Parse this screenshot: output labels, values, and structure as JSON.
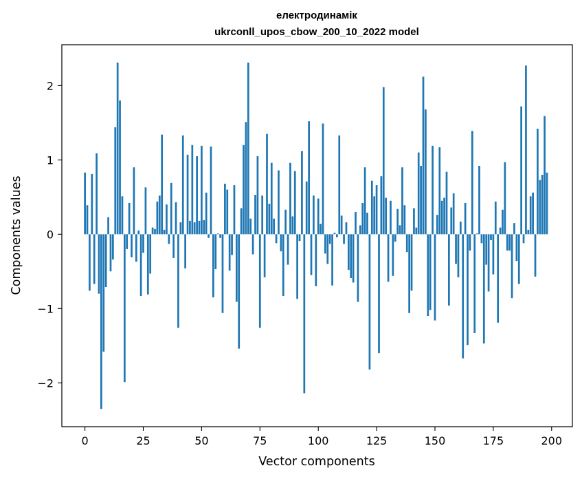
{
  "chart_data": {
    "type": "bar",
    "title": "електродинамік",
    "subtitle": "ukrconll_upos_cbow_200_10_2022 model",
    "xlabel": "Vector components",
    "ylabel": "Components values",
    "xlim": [
      -9.9,
      208.9
    ],
    "ylim": [
      -2.59,
      2.55
    ],
    "xticks": [
      0,
      25,
      50,
      75,
      100,
      125,
      150,
      175,
      200
    ],
    "yticks": [
      -2,
      -1,
      0,
      1,
      2
    ],
    "ytick_labels": [
      "−2",
      "−1",
      "0",
      "1",
      "2"
    ],
    "grid": false,
    "bar_color": "#1f77b4",
    "values": [
      0.83,
      0.39,
      -0.76,
      0.81,
      -0.67,
      1.09,
      -0.8,
      -2.35,
      -1.58,
      -0.71,
      0.23,
      -0.5,
      -0.34,
      1.44,
      2.31,
      1.8,
      0.51,
      -1.99,
      -0.2,
      0.42,
      -0.31,
      0.9,
      -0.37,
      0.05,
      -0.83,
      -0.25,
      0.63,
      -0.81,
      -0.53,
      0.09,
      0.07,
      0.44,
      0.52,
      1.34,
      0.06,
      0.4,
      -0.13,
      0.69,
      -0.32,
      0.43,
      -1.26,
      0.16,
      1.33,
      -0.46,
      1.07,
      0.18,
      1.2,
      0.16,
      1.05,
      0.18,
      1.19,
      0.19,
      0.56,
      -0.05,
      1.18,
      -0.85,
      -0.47,
      0.01,
      -0.05,
      -1.06,
      0.68,
      0.6,
      -0.49,
      -0.28,
      0.66,
      -0.91,
      -1.54,
      0.35,
      1.2,
      1.51,
      2.31,
      0.21,
      -0.27,
      0.53,
      1.05,
      -1.26,
      0.52,
      -0.58,
      1.35,
      0.41,
      0.96,
      0.21,
      -0.12,
      0.86,
      -0.23,
      -0.83,
      0.33,
      -0.41,
      0.96,
      0.24,
      0.85,
      -0.87,
      -0.09,
      1.12,
      -2.14,
      0.71,
      1.52,
      -0.55,
      0.52,
      -0.7,
      0.48,
      0.14,
      1.49,
      -0.26,
      -0.4,
      -0.13,
      -0.69,
      0.02,
      -0.04,
      1.33,
      0.25,
      -0.13,
      0.16,
      -0.48,
      -0.59,
      -0.65,
      0.3,
      -0.91,
      0.12,
      0.42,
      0.9,
      0.29,
      -1.82,
      0.72,
      0.51,
      0.66,
      -1.6,
      0.78,
      1.98,
      0.49,
      -0.64,
      0.45,
      -0.56,
      -0.1,
      0.34,
      0.12,
      0.9,
      0.39,
      -0.24,
      -1.06,
      -0.76,
      0.35,
      0.09,
      1.1,
      0.92,
      2.12,
      1.68,
      -1.1,
      -1.02,
      1.19,
      -1.16,
      0.26,
      1.17,
      0.45,
      0.49,
      0.84,
      -0.96,
      0.36,
      0.55,
      -0.4,
      -0.58,
      0.17,
      -1.67,
      0.42,
      -1.49,
      -0.22,
      1.39,
      -1.33,
      0.01,
      0.92,
      -0.12,
      -1.47,
      -0.41,
      -0.77,
      -0.08,
      -0.54,
      0.44,
      -1.19,
      0.09,
      0.33,
      0.97,
      -0.22,
      -0.22,
      -0.86,
      0.15,
      -0.36,
      -0.67,
      1.72,
      -0.12,
      2.27,
      0.06,
      0.51,
      0.56,
      -0.57,
      1.42,
      0.73,
      0.8,
      1.59,
      0.83
    ]
  }
}
